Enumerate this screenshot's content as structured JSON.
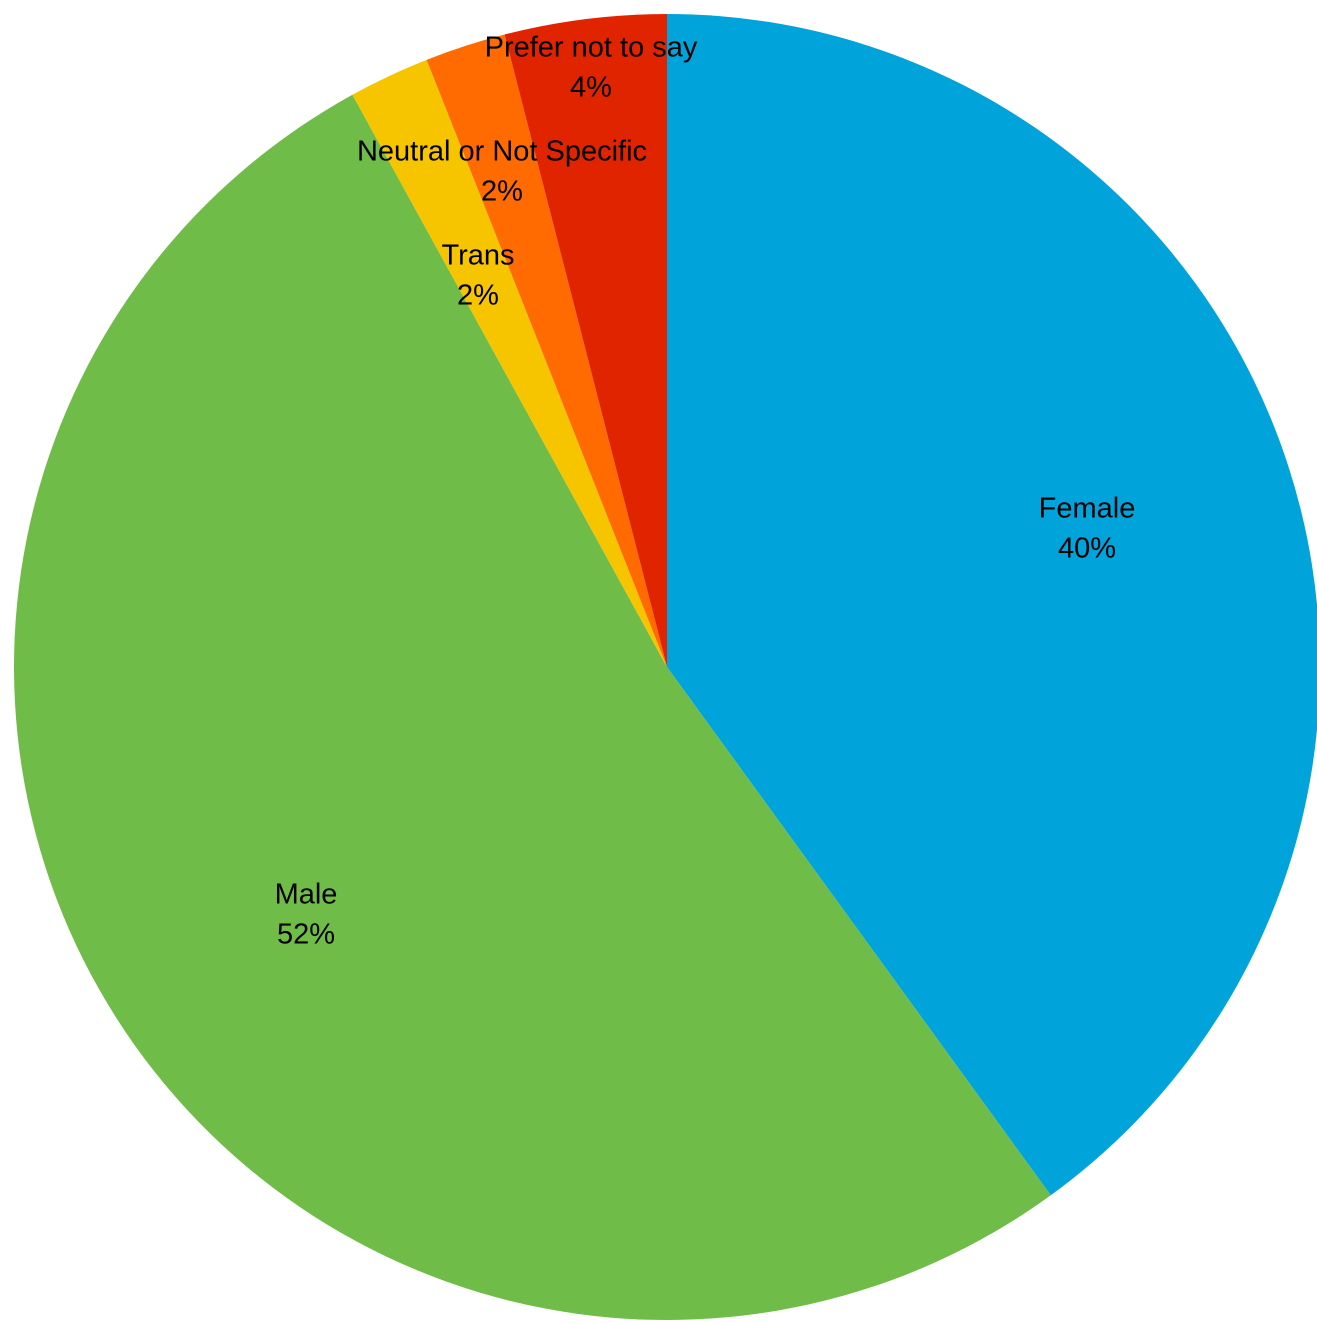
{
  "chart_data": {
    "type": "pie",
    "start": "12 o'clock",
    "direction": "clockwise",
    "slices": [
      {
        "name": "Female",
        "value": 40,
        "label": "40%",
        "color": "#00A3DA"
      },
      {
        "name": "Male",
        "value": 52,
        "label": "52%",
        "color": "#70BC48"
      },
      {
        "name": "Trans",
        "value": 2,
        "label": "2%",
        "color": "#F6C500"
      },
      {
        "name": "Neutral or Not Specific",
        "value": 2,
        "label": "2%",
        "color": "#FF6B00"
      },
      {
        "name": "Prefer not to say",
        "value": 4,
        "label": "4%",
        "color": "#E12400"
      }
    ]
  }
}
